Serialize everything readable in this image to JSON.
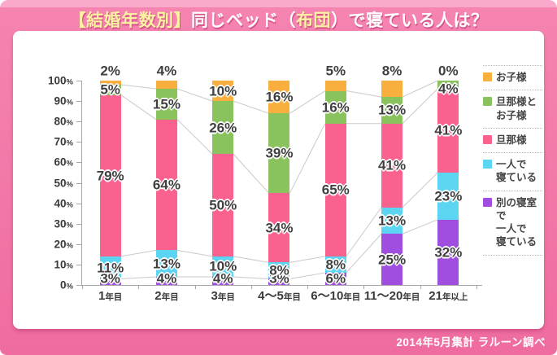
{
  "title": {
    "parts": [
      {
        "text": "【結婚年数別】",
        "color": "#FBF2A2"
      },
      {
        "text": "同じベッド（",
        "color": "#FFFFFF"
      },
      {
        "text": "布団",
        "color": "#FBF2A2"
      },
      {
        "text": "）で寝ている人は？",
        "color": "#FFFFFF"
      }
    ]
  },
  "footer": {
    "text": "2014年5月集計 ラルーン調べ"
  },
  "colors": {
    "background_pink": "#EF6CA0",
    "top_strip_pink": "#F9A9C9",
    "panel_white": "#FFFFFF",
    "axis_gray": "#A6A7AA",
    "connector_gray": "#C9C9C9",
    "label_dark": "#3F3F3F"
  },
  "chart_data": {
    "type": "bar",
    "variant": "stacked-percentage-column",
    "title": "【結婚年数別】同じベッド（布団）で寝ている人は？",
    "categories": [
      {
        "num": "1",
        "suffix": "年目"
      },
      {
        "num": "2",
        "suffix": "年目"
      },
      {
        "num": "3",
        "suffix": "年目"
      },
      {
        "num": "4～5",
        "suffix": "年目"
      },
      {
        "num": "6～10",
        "suffix": "年目"
      },
      {
        "num": "11～20",
        "suffix": "年目"
      },
      {
        "num": "21",
        "suffix": "年以上"
      }
    ],
    "series": [
      {
        "name": "別の寝室で一人で寝ている",
        "color": "#A04EE0",
        "values": [
          3,
          4,
          4,
          3,
          6,
          25,
          32
        ]
      },
      {
        "name": "一人で寝ている",
        "color": "#5CD5F2",
        "values": [
          11,
          13,
          10,
          8,
          8,
          13,
          23
        ]
      },
      {
        "name": "旦那様",
        "color": "#F9618F",
        "values": [
          79,
          64,
          50,
          34,
          65,
          41,
          41
        ]
      },
      {
        "name": "旦那様とお子様",
        "color": "#8AC35E",
        "values": [
          5,
          15,
          26,
          39,
          16,
          13,
          4
        ]
      },
      {
        "name": "お子様",
        "color": "#F8AF3D",
        "values": [
          2,
          4,
          10,
          16,
          5,
          8,
          0
        ]
      }
    ],
    "legend": [
      {
        "color": "#F8AF3D",
        "lines": [
          "お子様"
        ]
      },
      {
        "color": "#8AC35E",
        "lines": [
          "旦那様と",
          "お子様"
        ]
      },
      {
        "color": "#F9618F",
        "lines": [
          "旦那様"
        ]
      },
      {
        "color": "#5CD5F2",
        "lines": [
          "一人で",
          "寝ている"
        ]
      },
      {
        "color": "#A04EE0",
        "lines": [
          "別の寝室で",
          "一人で",
          "寝ている"
        ]
      }
    ],
    "y_axis": {
      "min": 0,
      "max": 100,
      "tick_step": 10,
      "suffix": "%"
    },
    "value_suffix": "%",
    "grid": false,
    "legend_position": "right"
  }
}
